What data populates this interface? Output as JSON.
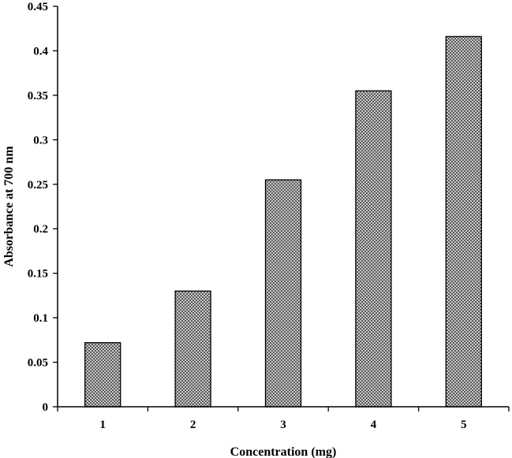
{
  "chart_data": {
    "type": "bar",
    "categories": [
      "1",
      "2",
      "3",
      "4",
      "5"
    ],
    "values": [
      0.072,
      0.13,
      0.255,
      0.355,
      0.416
    ],
    "title": "",
    "xlabel": "Concentration (mg)",
    "ylabel": "Absorbance at 700 nm",
    "ylim": [
      0,
      0.45
    ],
    "yticks": [
      "0",
      "0.05",
      "0.1",
      "0.15",
      "0.2",
      "0.25",
      "0.3",
      "0.35",
      "0.4",
      "0.45"
    ],
    "grid": false,
    "legend": "none",
    "bar_color": "#a0a0a0",
    "bar_pattern": "dotted-hatch"
  }
}
